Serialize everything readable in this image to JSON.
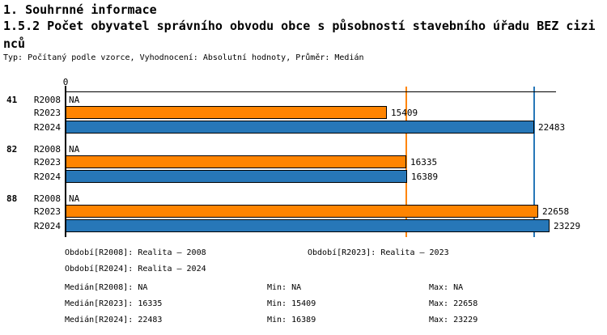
{
  "header": {
    "report_title": "1. Souhrnné informace",
    "section_title": "1.5.2 Počet obyvatel správního obvodu obce s působností stavebního úřadu BEZ cizinců",
    "subtitle": "Typ: Počítaný podle vzorce, Vyhodnocení: Absolutní hodnoty, Průměr: Medián"
  },
  "chart_data": {
    "type": "bar",
    "orientation": "horizontal",
    "title": "1.5.2 Počet obyvatel správního obvodu obce s působností stavebního úřadu BEZ cizinců",
    "xlabel": "",
    "ylabel": "",
    "xlim": [
      0,
      25400
    ],
    "grid": false,
    "legend_position": "bottom",
    "x_axis": {
      "zero_label": "0"
    },
    "series_colors": {
      "R2008": null,
      "R2023": "#FF8400",
      "R2024": "#2777B8"
    },
    "groups": [
      {
        "label": "41",
        "bars": [
          {
            "series": "R2008",
            "value": null,
            "value_label": "NA"
          },
          {
            "series": "R2023",
            "value": 15409,
            "value_label": "15409"
          },
          {
            "series": "R2024",
            "value": 22483,
            "value_label": "22483"
          }
        ]
      },
      {
        "label": "82",
        "bars": [
          {
            "series": "R2008",
            "value": null,
            "value_label": "NA"
          },
          {
            "series": "R2023",
            "value": 16335,
            "value_label": "16335"
          },
          {
            "series": "R2024",
            "value": 16389,
            "value_label": "16389"
          }
        ]
      },
      {
        "label": "88",
        "bars": [
          {
            "series": "R2008",
            "value": null,
            "value_label": "NA"
          },
          {
            "series": "R2023",
            "value": 22658,
            "value_label": "22658"
          },
          {
            "series": "R2024",
            "value": 23229,
            "value_label": "23229"
          }
        ]
      }
    ],
    "reference_lines": [
      {
        "name": "median-R2023",
        "value": 16335,
        "color": "#FF8400"
      },
      {
        "name": "median-R2024",
        "value": 22483,
        "color": "#2777B8"
      }
    ]
  },
  "legend": [
    {
      "label": "Období[R2008]:",
      "value": "Realita – 2008"
    },
    {
      "label": "Období[R2023]:",
      "value": "Realita – 2023"
    },
    {
      "label": "Období[R2024]:",
      "value": "Realita – 2024"
    }
  ],
  "stats": [
    {
      "label": "Medián[R2008]:",
      "value": "NA",
      "min_label": "Min:",
      "min": "NA",
      "max_label": "Max:",
      "max": "NA"
    },
    {
      "label": "Medián[R2023]:",
      "value": "16335",
      "min_label": "Min:",
      "min": "15409",
      "max_label": "Max:",
      "max": "22658"
    },
    {
      "label": "Medián[R2024]:",
      "value": "22483",
      "min_label": "Min:",
      "min": "16389",
      "max_label": "Max:",
      "max": "23229"
    }
  ]
}
